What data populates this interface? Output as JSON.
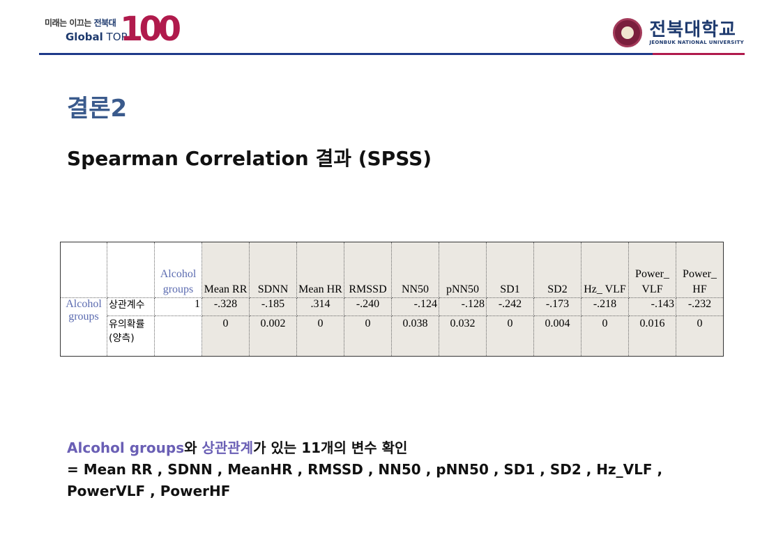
{
  "header": {
    "left_logo": {
      "slogan_prefix": "미래는",
      "slogan_mid": "이끄는",
      "slogan_brand": "전북대",
      "global": "Global",
      "top": "TOP",
      "number": "100"
    },
    "right_logo": {
      "name_ko": "전북대학교",
      "name_en": "JEONBUK NATIONAL UNIVERSITY"
    },
    "colors": {
      "primary": "#1e3a8a",
      "accent": "#b01a4c"
    }
  },
  "title": "결론2",
  "subtitle": "Spearman Correlation 결과 (SPSS)",
  "table": {
    "headers": [
      "Alcohol groups",
      "Mean RR",
      "SDNN",
      "Mean HR",
      "RMSSD",
      "NN50",
      "pNN50",
      "SD1",
      "SD2",
      "Hz_ VLF",
      "Power_ VLF",
      "Power_ HF"
    ],
    "row_group": "Alcohol groups",
    "rows": [
      {
        "label": "상관계수",
        "values": [
          "1",
          "-.328",
          "-.185",
          ".314",
          "-.240",
          "-.124",
          "-.128",
          "-.242",
          "-.173",
          "-.218",
          "-.143",
          "-.232"
        ]
      },
      {
        "label": "유의확률 (양측)",
        "values": [
          "",
          "0",
          "0.002",
          "0",
          "0",
          "0.038",
          "0.032",
          "0",
          "0.004",
          "0",
          "0.016",
          "0"
        ]
      }
    ]
  },
  "conclusion": {
    "highlight1": "Alcohol groups",
    "text1": "와 ",
    "highlight2": "상관관계",
    "text2": "가 있는 11개의 변수 확인",
    "line2": "= Mean RR , SDNN , MeanHR , RMSSD , NN50 , pNN50 , SD1 , SD2 , Hz_VLF ,",
    "line3": "PowerVLF , PowerHF"
  }
}
